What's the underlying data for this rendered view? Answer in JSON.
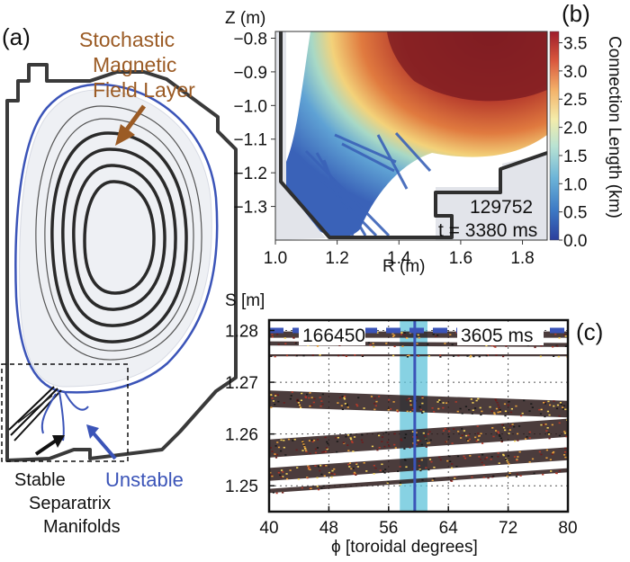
{
  "panel_a": {
    "label": "(a)",
    "annotation_top": [
      "Stochastic",
      "Magnetic",
      "Field Layer"
    ],
    "label_stable": "Stable",
    "label_unstable": "Unstable",
    "label_bottom": [
      "Separatrix",
      "Manifolds"
    ],
    "colors": {
      "brown": "#9b5b25",
      "blue": "#3b54b8",
      "wall": "#3a3a3a"
    }
  },
  "panel_b": {
    "label": "(b)",
    "shot": "129752",
    "time": "t = 3380 ms",
    "y_axis_title": "Z (m)",
    "x_axis_title": "R (m)",
    "colorbar_title": "Connection Length (km)"
  },
  "panel_c": {
    "label": "(c)",
    "shot": "166450",
    "time": "3605 ms",
    "y_axis_title": "S [m]",
    "x_axis_title": "ϕ [toroidal degrees]"
  },
  "chart_data": [
    {
      "type": "heatmap",
      "title": "",
      "xlabel": "R (m)",
      "ylabel": "Z (m)",
      "xlim": [
        1.0,
        1.88
      ],
      "ylim": [
        -1.4,
        -0.78
      ],
      "xticks": [
        "1.0",
        "1.2",
        "1.4",
        "1.6",
        "1.8"
      ],
      "xtick_values": [
        1.0,
        1.2,
        1.4,
        1.6,
        1.8
      ],
      "yticks": [
        "-0.8",
        "-0.9",
        "-1.0",
        "-1.1",
        "-1.2",
        "-1.3"
      ],
      "ytick_values": [
        -0.8,
        -0.9,
        -1.0,
        -1.1,
        -1.2,
        -1.3
      ],
      "colorbar": {
        "label": "Connection Length (km)",
        "range": [
          0.0,
          3.7
        ],
        "ticks": [
          "0.0",
          "0.5",
          "1.0",
          "1.5",
          "2.0",
          "2.5",
          "3.0",
          "3.5"
        ],
        "tick_values": [
          0.0,
          0.5,
          1.0,
          1.5,
          2.0,
          2.5,
          3.0,
          3.5
        ]
      }
    },
    {
      "type": "scatter",
      "title": "",
      "xlabel": "ϕ [toroidal degrees]",
      "ylabel": "S [m]",
      "xlim": [
        40,
        80
      ],
      "ylim": [
        1.245,
        1.282
      ],
      "xticks": [
        "40",
        "48",
        "56",
        "64",
        "72",
        "80"
      ],
      "xtick_values": [
        40,
        48,
        56,
        64,
        72,
        80
      ],
      "yticks": [
        "1.28",
        "1.27",
        "1.26",
        "1.25"
      ],
      "ytick_values": [
        1.28,
        1.27,
        1.26,
        1.25
      ],
      "grid": true,
      "dashed_line_S": 1.28,
      "highlight_band_phi": [
        57.5,
        61.2
      ],
      "vertical_line_phi": 59.5,
      "bands": [
        {
          "name": "band-1",
          "S_at_40": 1.2792,
          "S_at_80": 1.2792,
          "width": 0.0012
        },
        {
          "name": "band-2",
          "S_at_40": 1.2775,
          "S_at_80": 1.2772,
          "width": 0.0008
        },
        {
          "name": "band-3",
          "S_at_40": 1.2752,
          "S_at_80": 1.2752,
          "width": 0.0004
        },
        {
          "name": "band-4",
          "S_at_40": 1.2668,
          "S_at_80": 1.2648,
          "width": 0.0032
        },
        {
          "name": "band-5",
          "S_at_40": 1.2572,
          "S_at_80": 1.2612,
          "width": 0.0035
        },
        {
          "name": "band-6",
          "S_at_40": 1.2522,
          "S_at_80": 1.2562,
          "width": 0.0025
        },
        {
          "name": "band-7",
          "S_at_40": 1.249,
          "S_at_80": 1.253,
          "width": 0.0008
        }
      ]
    }
  ]
}
